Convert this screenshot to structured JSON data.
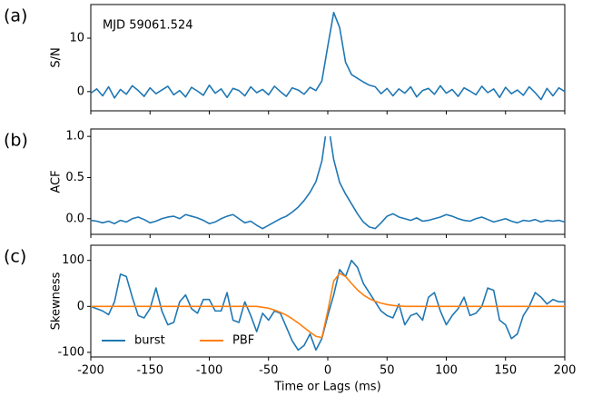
{
  "chart_data": [
    {
      "type": "line",
      "panel_label": "(a)",
      "ylabel": "S/N",
      "annotation": "MJD 59061.524",
      "xlim": [
        -200,
        200
      ],
      "xticks": [
        -200,
        -150,
        -100,
        -50,
        0,
        50,
        100,
        150,
        200
      ],
      "ylim": [
        -3.6,
        16.3
      ],
      "yticks": [
        0,
        10
      ],
      "x": [
        -200,
        -195,
        -190,
        -185,
        -180,
        -175,
        -170,
        -165,
        -160,
        -155,
        -150,
        -145,
        -140,
        -135,
        -130,
        -125,
        -120,
        -115,
        -110,
        -105,
        -100,
        -95,
        -90,
        -85,
        -80,
        -75,
        -70,
        -65,
        -60,
        -55,
        -50,
        -45,
        -40,
        -35,
        -30,
        -25,
        -20,
        -15,
        -10,
        -5,
        0,
        5,
        10,
        15,
        20,
        25,
        30,
        35,
        40,
        45,
        50,
        55,
        60,
        65,
        70,
        75,
        80,
        85,
        90,
        95,
        100,
        105,
        110,
        115,
        120,
        125,
        130,
        135,
        140,
        145,
        150,
        155,
        160,
        165,
        170,
        175,
        180,
        185,
        190,
        195,
        200
      ],
      "series": [
        {
          "color": "#1f77b4",
          "values": [
            -0.3,
            0.5,
            -0.8,
            0.9,
            -1.2,
            0.4,
            -0.5,
            1.1,
            0.2,
            -0.9,
            0.7,
            -0.4,
            0.3,
            1.0,
            -0.6,
            0.2,
            -1.0,
            0.8,
            0.1,
            -0.7,
            1.2,
            -0.3,
            0.5,
            -1.1,
            0.6,
            0.2,
            -0.8,
            0.9,
            -0.2,
            0.4,
            -0.6,
            1.0,
            0.0,
            -0.9,
            0.7,
            0.3,
            -0.5,
            0.8,
            0.2,
            2.0,
            8.5,
            14.8,
            12.0,
            5.5,
            3.2,
            2.5,
            1.8,
            1.2,
            0.9,
            -0.4,
            0.6,
            -0.8,
            0.5,
            -0.3,
            0.9,
            -1.0,
            0.2,
            0.6,
            -0.5,
            1.1,
            -0.3,
            0.4,
            -0.9,
            0.7,
            0.1,
            -0.6,
            1.0,
            -0.2,
            0.5,
            -1.1,
            0.8,
            -0.4,
            0.3,
            -0.7,
            0.9,
            -0.2,
            -1.5,
            0.6,
            -0.8,
            0.7,
            0.0
          ]
        }
      ]
    },
    {
      "type": "line",
      "panel_label": "(b)",
      "ylabel": "ACF",
      "xlim": [
        -200,
        200
      ],
      "xticks": [
        -200,
        -150,
        -100,
        -50,
        0,
        50,
        100,
        150,
        200
      ],
      "ylim": [
        -0.19,
        1.09
      ],
      "yticks": [
        {
          "value": 0,
          "label": "0.0"
        },
        {
          "value": 0.5,
          "label": "0.5"
        },
        {
          "value": 1,
          "label": "1.0"
        }
      ],
      "x": [
        -200,
        -195,
        -190,
        -185,
        -180,
        -175,
        -170,
        -165,
        -160,
        -155,
        -150,
        -145,
        -140,
        -135,
        -130,
        -125,
        -120,
        -115,
        -110,
        -105,
        -100,
        -95,
        -90,
        -85,
        -80,
        -75,
        -70,
        -65,
        -60,
        -55,
        -50,
        -45,
        -40,
        -35,
        -30,
        -25,
        -20,
        -15,
        -10,
        -5,
        -2,
        0,
        2,
        5,
        10,
        15,
        20,
        25,
        30,
        35,
        40,
        45,
        50,
        55,
        60,
        65,
        70,
        75,
        80,
        85,
        90,
        95,
        100,
        105,
        110,
        115,
        120,
        125,
        130,
        135,
        140,
        145,
        150,
        155,
        160,
        165,
        170,
        175,
        180,
        185,
        190,
        195,
        200
      ],
      "series": [
        {
          "color": "#1f77b4",
          "values": [
            -0.02,
            -0.03,
            -0.05,
            -0.03,
            -0.06,
            -0.02,
            -0.04,
            0.0,
            0.02,
            -0.01,
            -0.05,
            -0.03,
            0.0,
            0.02,
            0.03,
            0.0,
            0.05,
            0.03,
            0.01,
            -0.02,
            -0.06,
            -0.04,
            0.0,
            0.03,
            0.05,
            0.0,
            -0.05,
            -0.03,
            -0.08,
            -0.12,
            -0.08,
            -0.04,
            0.0,
            0.03,
            0.08,
            0.14,
            0.22,
            0.32,
            0.45,
            0.7,
            1.0,
            null,
            1.0,
            0.72,
            0.44,
            0.3,
            0.18,
            0.06,
            -0.04,
            -0.1,
            -0.12,
            -0.05,
            0.03,
            0.06,
            0.02,
            0.0,
            -0.02,
            0.01,
            -0.03,
            -0.02,
            0.0,
            0.02,
            0.05,
            0.03,
            0.0,
            -0.02,
            -0.03,
            0.0,
            0.02,
            -0.01,
            -0.04,
            -0.02,
            0.0,
            -0.03,
            -0.05,
            -0.02,
            -0.03,
            -0.01,
            -0.04,
            -0.02,
            -0.03,
            -0.02,
            -0.04
          ]
        }
      ]
    },
    {
      "type": "line",
      "panel_label": "(c)",
      "ylabel": "Skewness",
      "xlabel": "Time or Lags (ms)",
      "legend": "lower left",
      "xlim": [
        -200,
        200
      ],
      "xticks": [
        -200,
        -150,
        -100,
        -50,
        0,
        50,
        100,
        150,
        200
      ],
      "ylim": [
        -110,
        133
      ],
      "yticks": [
        -100,
        0,
        100
      ],
      "x": [
        -200,
        -195,
        -190,
        -185,
        -180,
        -175,
        -170,
        -165,
        -160,
        -155,
        -150,
        -145,
        -140,
        -135,
        -130,
        -125,
        -120,
        -115,
        -110,
        -105,
        -100,
        -95,
        -90,
        -85,
        -80,
        -75,
        -70,
        -65,
        -60,
        -55,
        -50,
        -45,
        -40,
        -35,
        -30,
        -25,
        -20,
        -15,
        -10,
        -5,
        0,
        5,
        10,
        15,
        20,
        25,
        30,
        35,
        40,
        45,
        50,
        55,
        60,
        65,
        70,
        75,
        80,
        85,
        90,
        95,
        100,
        105,
        110,
        115,
        120,
        125,
        130,
        135,
        140,
        145,
        150,
        155,
        160,
        165,
        170,
        175,
        180,
        185,
        190,
        195,
        200
      ],
      "series": [
        {
          "name": "burst",
          "color": "#1f77b4",
          "values": [
            0,
            -5,
            -10,
            -18,
            10,
            70,
            65,
            20,
            -20,
            -25,
            -5,
            40,
            -10,
            -40,
            -35,
            10,
            25,
            -5,
            -15,
            15,
            15,
            -10,
            -10,
            30,
            -30,
            -35,
            10,
            -20,
            -55,
            -15,
            -30,
            -10,
            -15,
            -45,
            -75,
            -95,
            -85,
            -60,
            -95,
            -70,
            -20,
            25,
            80,
            65,
            100,
            85,
            50,
            30,
            10,
            -10,
            -20,
            -25,
            5,
            -40,
            -20,
            -15,
            -30,
            20,
            30,
            -10,
            -40,
            -20,
            -5,
            20,
            -20,
            -15,
            0,
            40,
            35,
            -30,
            -40,
            -70,
            -60,
            -20,
            0,
            30,
            20,
            5,
            15,
            10,
            10
          ]
        },
        {
          "name": "PBF",
          "color": "#ff7f0e",
          "values": [
            0,
            0,
            0,
            0,
            0,
            0,
            0,
            0,
            0,
            0,
            0,
            0,
            0,
            0,
            0,
            0,
            0,
            0,
            0,
            0,
            0,
            0,
            0,
            0,
            0,
            0,
            0,
            0,
            0,
            -2,
            -4,
            -8,
            -13,
            -19,
            -27,
            -36,
            -46,
            -56,
            -65,
            -68,
            -10,
            55,
            72,
            65,
            50,
            36,
            25,
            17,
            11,
            7,
            4,
            2,
            1,
            0,
            0,
            0,
            0,
            0,
            0,
            0,
            0,
            0,
            0,
            0,
            0,
            0,
            0,
            0,
            0,
            0,
            0,
            0,
            0,
            0,
            0,
            0,
            0,
            0,
            0,
            0,
            0
          ]
        }
      ]
    }
  ]
}
